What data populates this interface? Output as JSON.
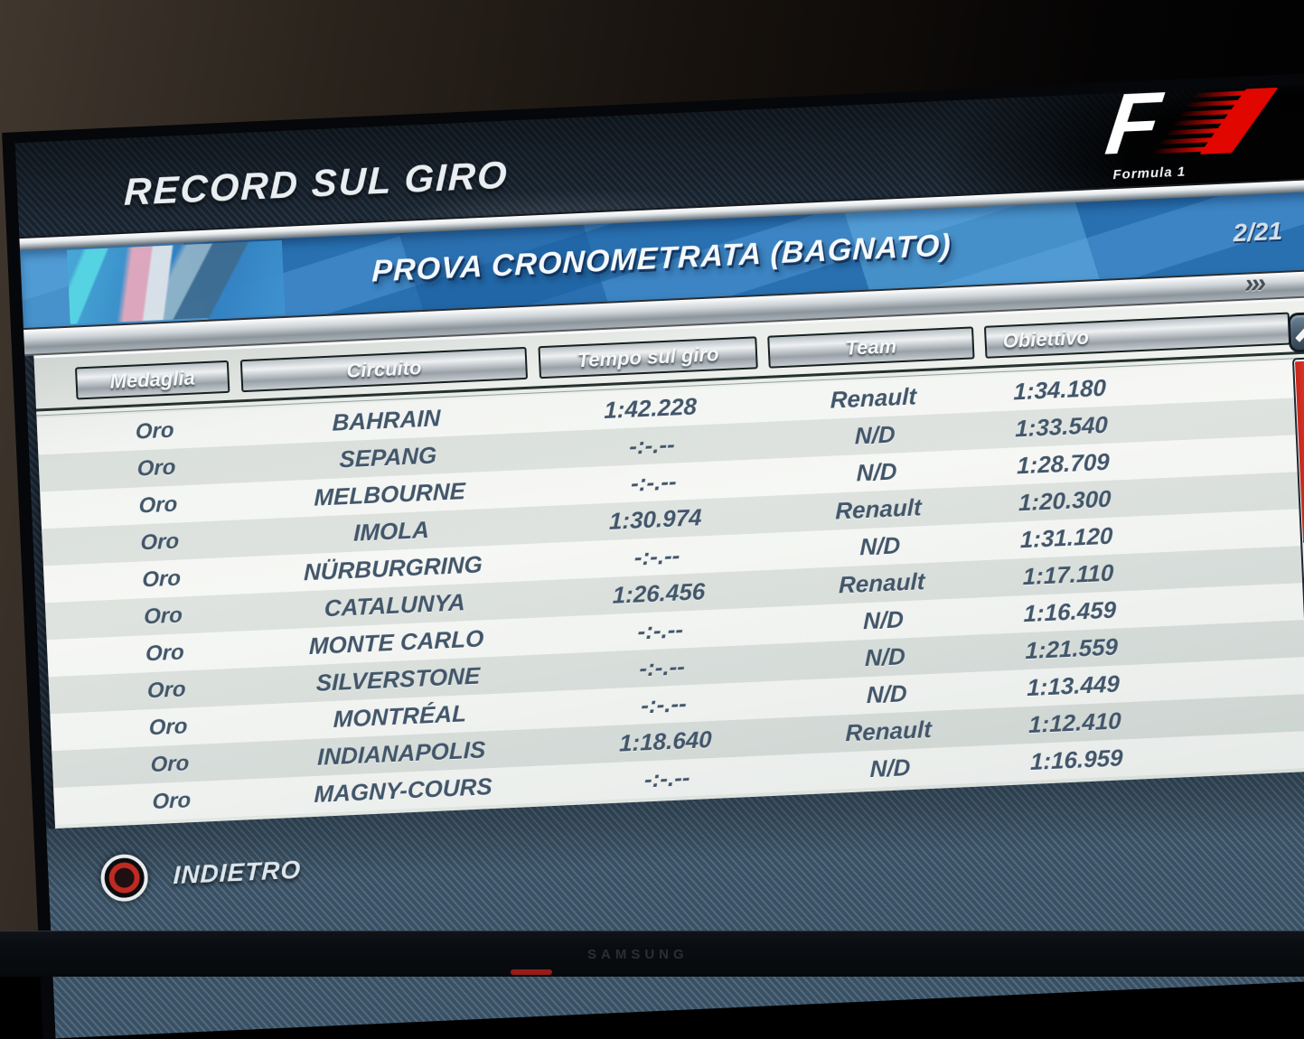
{
  "screen": {
    "title": "RECORD SUL GIRO",
    "subtitle": "PROVA CRONOMETRATA (BAGNATO)",
    "page_indicator": "2/21",
    "forward_glyph": "›››",
    "brand": {
      "logo_f": "F",
      "caption": "Formula 1"
    },
    "columns": {
      "medal": "Medaglia",
      "circuit": "Circuito",
      "lap_time": "Tempo sul giro",
      "team": "Team",
      "objective": "Obiettivo"
    },
    "rows": [
      {
        "medal": "Oro",
        "circuit": "BAHRAIN",
        "lap_time": "1:42.228",
        "team": "Renault",
        "objective": "1:34.180"
      },
      {
        "medal": "Oro",
        "circuit": "SEPANG",
        "lap_time": "-:-.--",
        "team": "N/D",
        "objective": "1:33.540"
      },
      {
        "medal": "Oro",
        "circuit": "MELBOURNE",
        "lap_time": "-:-.--",
        "team": "N/D",
        "objective": "1:28.709"
      },
      {
        "medal": "Oro",
        "circuit": "IMOLA",
        "lap_time": "1:30.974",
        "team": "Renault",
        "objective": "1:20.300"
      },
      {
        "medal": "Oro",
        "circuit": "NÜRBURGRING",
        "lap_time": "-:-.--",
        "team": "N/D",
        "objective": "1:31.120"
      },
      {
        "medal": "Oro",
        "circuit": "CATALUNYA",
        "lap_time": "1:26.456",
        "team": "Renault",
        "objective": "1:17.110"
      },
      {
        "medal": "Oro",
        "circuit": "MONTE CARLO",
        "lap_time": "-:-.--",
        "team": "N/D",
        "objective": "1:16.459"
      },
      {
        "medal": "Oro",
        "circuit": "SILVERSTONE",
        "lap_time": "-:-.--",
        "team": "N/D",
        "objective": "1:21.559"
      },
      {
        "medal": "Oro",
        "circuit": "MONTRÉAL",
        "lap_time": "-:-.--",
        "team": "N/D",
        "objective": "1:13.449"
      },
      {
        "medal": "Oro",
        "circuit": "INDIANAPOLIS",
        "lap_time": "1:18.640",
        "team": "Renault",
        "objective": "1:12.410"
      },
      {
        "medal": "Oro",
        "circuit": "MAGNY-COURS",
        "lap_time": "-:-.--",
        "team": "N/D",
        "objective": "1:16.959"
      }
    ],
    "footer": {
      "back_label": "INDIETRO"
    },
    "tv": {
      "brand": "SAMSUNG"
    },
    "colors": {
      "band_blue": "#2d7bbf",
      "thumb_red": "#e2251c",
      "accent_red": "#e10600",
      "panel_bg": "#edf0ec",
      "row_text": "#42566a"
    }
  }
}
